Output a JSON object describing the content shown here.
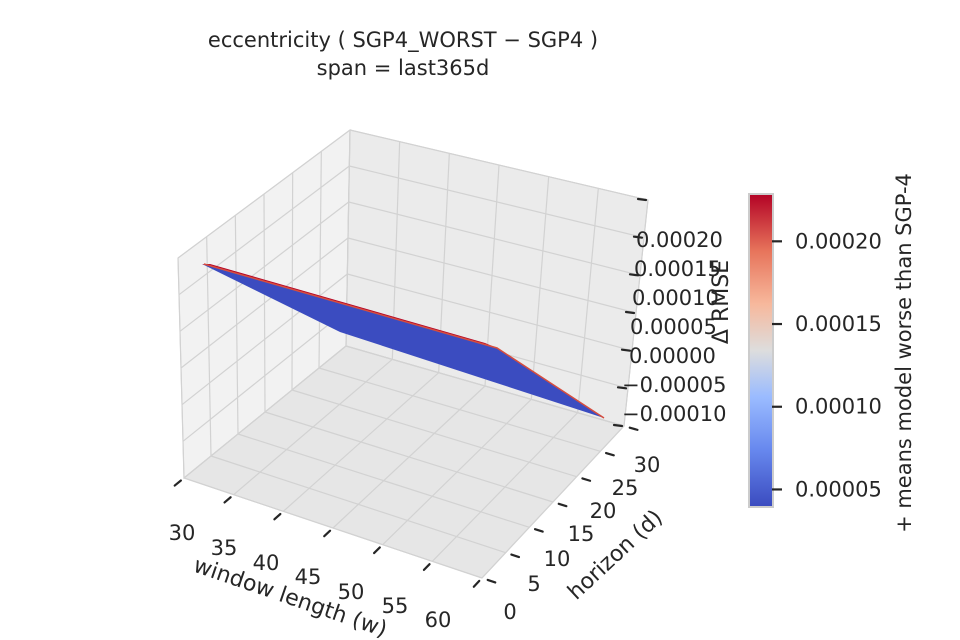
{
  "chart_data": {
    "type": "surface",
    "title_lines": [
      "eccentricity  ( SGP4_WORST − SGP4 )",
      "span = last365d"
    ],
    "xlabel": "window length (w)",
    "ylabel": "horizon (d)",
    "zlabel": "Δ RMSE",
    "x_ticks": [
      "30",
      "35",
      "40",
      "45",
      "50",
      "55",
      "60"
    ],
    "y_ticks": [
      "0",
      "5",
      "10",
      "15",
      "20",
      "25",
      "30"
    ],
    "z_ticks": [
      "−0.00010",
      "−0.00005",
      "0.00000",
      "0.00005",
      "0.00010",
      "0.00015",
      "0.00020"
    ],
    "xlim": [
      30,
      60
    ],
    "ylim": [
      0,
      30
    ],
    "zlim": [
      -0.0001,
      0.00022
    ],
    "x": [
      30,
      60
    ],
    "y": [
      0,
      30
    ],
    "z": [
      [
        0.00022,
        5e-05
      ],
      [
        5e-05,
        -0.0001
      ]
    ],
    "colorbar": {
      "label": "+ means model worse than SGP-4",
      "ticks": [
        "0.00005",
        "0.00010",
        "0.00015",
        "0.00020"
      ],
      "tick_values": [
        5e-05,
        0.0001,
        0.00015,
        0.0002
      ],
      "range": [
        4e-05,
        0.000228
      ],
      "colormap": "coolwarm"
    },
    "grid": true,
    "colors": {
      "pane": "#f2f2f2",
      "grid": "#d2d2d2",
      "low": "#3b4cc0",
      "high": "#b40426"
    }
  }
}
